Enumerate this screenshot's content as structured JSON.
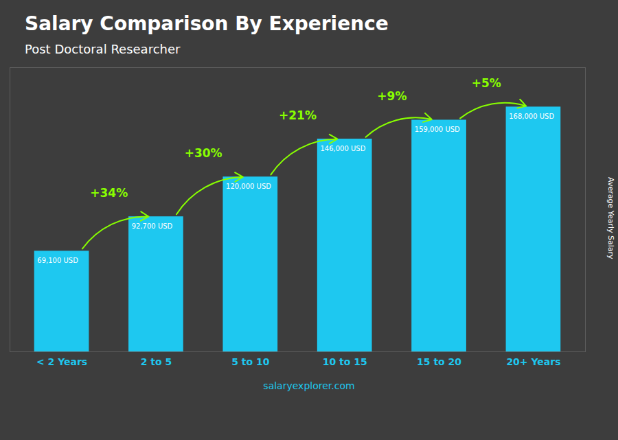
{
  "chart_data": {
    "type": "bar",
    "title": "Salary Comparison By Experience",
    "subtitle": "Post Doctoral Researcher",
    "ylabel": "Average Yearly Salary",
    "caption": "salaryexplorer.com",
    "categories": [
      "< 2 Years",
      "2 to 5",
      "5 to 10",
      "10 to 15",
      "15 to 20",
      "20+ Years"
    ],
    "values": [
      69100,
      92700,
      120000,
      146000,
      159000,
      168000
    ],
    "value_labels": [
      "69,100 USD",
      "92,700 USD",
      "120,000 USD",
      "146,000 USD",
      "159,000 USD",
      "168,000 USD"
    ],
    "data_labels": true,
    "color": "#1ec8f0",
    "ylim": [
      0,
      195000
    ],
    "tick_labels": "x",
    "grid": false,
    "annotations": [
      {
        "text": "+34%",
        "color": "#88ff00"
      },
      {
        "text": "+30%",
        "color": "#88ff00"
      },
      {
        "text": "+21%",
        "color": "#88ff00"
      },
      {
        "text": "+9%",
        "color": "#88ff00"
      },
      {
        "text": "+5%",
        "color": "#88ff00"
      }
    ]
  }
}
